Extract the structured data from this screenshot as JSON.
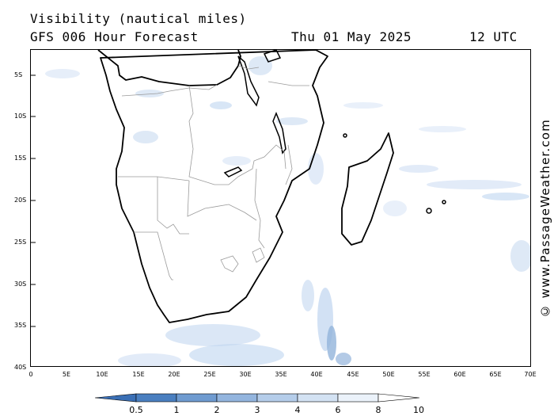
{
  "header": {
    "title": "Visibility (nautical miles)",
    "subtitle": "GFS 006 Hour Forecast",
    "date": "Thu 01 May 2025",
    "hour": "12 UTC"
  },
  "credit": "© www.PassageWeather.com",
  "axes": {
    "lat_labels": [
      "5S",
      "10S",
      "15S",
      "20S",
      "25S",
      "30S",
      "35S",
      "40S"
    ],
    "lon_labels": [
      "0",
      "5E",
      "10E",
      "15E",
      "20E",
      "25E",
      "30E",
      "35E",
      "40E",
      "45E",
      "50E",
      "55E",
      "60E",
      "65E",
      "70E"
    ]
  },
  "legend": {
    "labels": [
      "0.5",
      "1",
      "2",
      "3",
      "4",
      "6",
      "8",
      "10"
    ],
    "colors": [
      "#3a6fb5",
      "#4a7fc0",
      "#6f9bd0",
      "#93b5de",
      "#b5cdea",
      "#d3e2f3",
      "#ebf2fa",
      "#ffffff"
    ]
  },
  "map": {
    "land_outline_color": "#000000",
    "border_color": "#9a9a9a",
    "fog_color": "#a9c6ea"
  }
}
